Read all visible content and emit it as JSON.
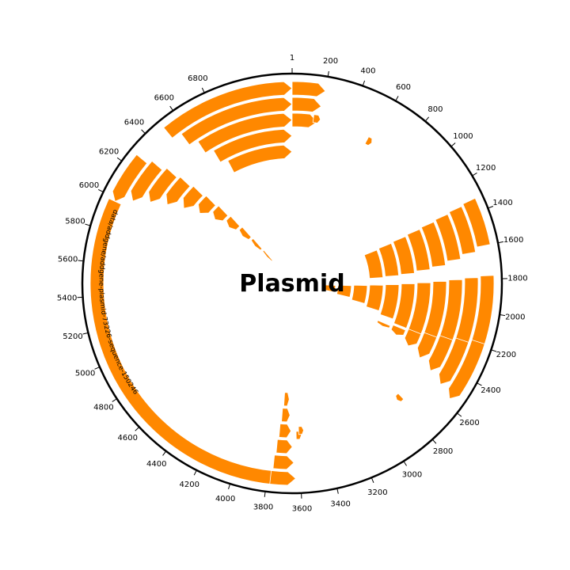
{
  "map": {
    "title": "Plasmid",
    "total_length": 7300,
    "feature_color": "#ff8800",
    "backbone_color": "#000000",
    "tick_labels": [
      "1",
      "200",
      "400",
      "600",
      "800",
      "1000",
      "1200",
      "1400",
      "1600",
      "1800",
      "2000",
      "2200",
      "2400",
      "2600",
      "2800",
      "3000",
      "3200",
      "3400",
      "3600",
      "3800",
      "4000",
      "4200",
      "4400",
      "4600",
      "4800",
      "5000",
      "5200",
      "5400",
      "5600",
      "5800",
      "6000",
      "6200",
      "6400",
      "6600",
      "6800"
    ],
    "sequence_label": "data/addgene/addgene-plasmid-73226-sequence-150246"
  },
  "tracks": [
    {
      "name": "left-track",
      "items": [
        {
          "start": 3700,
          "end": 5980,
          "orientation": "none",
          "labeled": true
        }
      ]
    },
    {
      "name": "top-right-blocks",
      "items": [
        {
          "start": 1,
          "end": 200,
          "orientation": "right"
        },
        {
          "start": 1,
          "end": 190,
          "orientation": "right"
        },
        {
          "start": 1,
          "end": 180,
          "orientation": "right"
        }
      ]
    },
    {
      "name": "top-left-stack",
      "items": [
        {
          "start": 6500,
          "end": 7300,
          "orientation": "right"
        },
        {
          "start": 6560,
          "end": 7300,
          "orientation": "right"
        },
        {
          "start": 6620,
          "end": 7300,
          "orientation": "right"
        },
        {
          "start": 6680,
          "end": 7300,
          "orientation": "right"
        },
        {
          "start": 6740,
          "end": 7300,
          "orientation": "right"
        }
      ]
    },
    {
      "name": "left-staircase",
      "items": [
        {
          "start": 5980,
          "end": 6280,
          "orientation": "left"
        },
        {
          "start": 6030,
          "end": 6310,
          "orientation": "left"
        },
        {
          "start": 6080,
          "end": 6340,
          "orientation": "left"
        },
        {
          "start": 6130,
          "end": 6360,
          "orientation": "left"
        },
        {
          "start": 6180,
          "end": 6380,
          "orientation": "left"
        },
        {
          "start": 6230,
          "end": 6400,
          "orientation": "left"
        },
        {
          "start": 6280,
          "end": 6420,
          "orientation": "left"
        },
        {
          "start": 6320,
          "end": 6440,
          "orientation": "left"
        },
        {
          "start": 6360,
          "end": 6460,
          "orientation": "left"
        },
        {
          "start": 6390,
          "end": 6470,
          "orientation": "left"
        },
        {
          "start": 6420,
          "end": 6480,
          "orientation": "left"
        }
      ]
    },
    {
      "name": "right-top-fan",
      "items": [
        {
          "start": 1320,
          "end": 1600,
          "orientation": "none"
        },
        {
          "start": 1330,
          "end": 1630,
          "orientation": "none"
        },
        {
          "start": 1340,
          "end": 1660,
          "orientation": "none"
        },
        {
          "start": 1350,
          "end": 1690,
          "orientation": "none"
        },
        {
          "start": 1360,
          "end": 1710,
          "orientation": "none"
        },
        {
          "start": 1370,
          "end": 1730,
          "orientation": "none"
        },
        {
          "start": 1380,
          "end": 1740,
          "orientation": "none"
        },
        {
          "start": 1390,
          "end": 1750,
          "orientation": "none"
        }
      ]
    },
    {
      "name": "right-bottom-fan",
      "items": [
        {
          "start": 1780,
          "end": 2420,
          "orientation": "none"
        },
        {
          "start": 1790,
          "end": 2400,
          "orientation": "none"
        },
        {
          "start": 1800,
          "end": 2380,
          "orientation": "none"
        },
        {
          "start": 1810,
          "end": 2340,
          "orientation": "none"
        },
        {
          "start": 1820,
          "end": 2300,
          "orientation": "none"
        },
        {
          "start": 1830,
          "end": 2260,
          "orientation": "none"
        },
        {
          "start": 1840,
          "end": 2220,
          "orientation": "none"
        },
        {
          "start": 1850,
          "end": 2180,
          "orientation": "none"
        },
        {
          "start": 1860,
          "end": 2140,
          "orientation": "none"
        },
        {
          "start": 1870,
          "end": 2100,
          "orientation": "none"
        },
        {
          "start": 1880,
          "end": 2060,
          "orientation": "none"
        }
      ]
    },
    {
      "name": "bottom-staircase",
      "items": [
        {
          "start": 2180,
          "end": 2560,
          "orientation": "right"
        },
        {
          "start": 2200,
          "end": 2520,
          "orientation": "right"
        },
        {
          "start": 2220,
          "end": 2480,
          "orientation": "right"
        },
        {
          "start": 2240,
          "end": 2440,
          "orientation": "right"
        },
        {
          "start": 2260,
          "end": 2400,
          "orientation": "right"
        },
        {
          "start": 2280,
          "end": 2360,
          "orientation": "right"
        },
        {
          "start": 2300,
          "end": 2340,
          "orientation": "right"
        }
      ]
    },
    {
      "name": "lower-left-stack",
      "items": [
        {
          "start": 3630,
          "end": 3780,
          "orientation": "left"
        },
        {
          "start": 3640,
          "end": 3770,
          "orientation": "left"
        },
        {
          "start": 3650,
          "end": 3760,
          "orientation": "left"
        },
        {
          "start": 3660,
          "end": 3750,
          "orientation": "left"
        },
        {
          "start": 3670,
          "end": 3740,
          "orientation": "left"
        },
        {
          "start": 3680,
          "end": 3730,
          "orientation": "left"
        }
      ]
    },
    {
      "name": "small-arrows",
      "items": [
        {
          "start": 150,
          "end": 200,
          "orientation": "right"
        },
        {
          "start": 560,
          "end": 600,
          "orientation": "right"
        },
        {
          "start": 2760,
          "end": 2800,
          "orientation": "right"
        },
        {
          "start": 3580,
          "end": 3620,
          "orientation": "left"
        },
        {
          "start": 3560,
          "end": 3600,
          "orientation": "left"
        }
      ]
    }
  ]
}
